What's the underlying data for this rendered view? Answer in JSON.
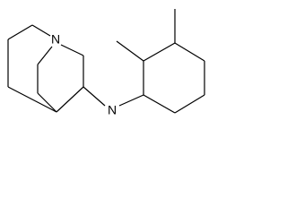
{
  "atoms": [
    {
      "label": "N"
    },
    {
      "label": "N"
    }
  ]
}
